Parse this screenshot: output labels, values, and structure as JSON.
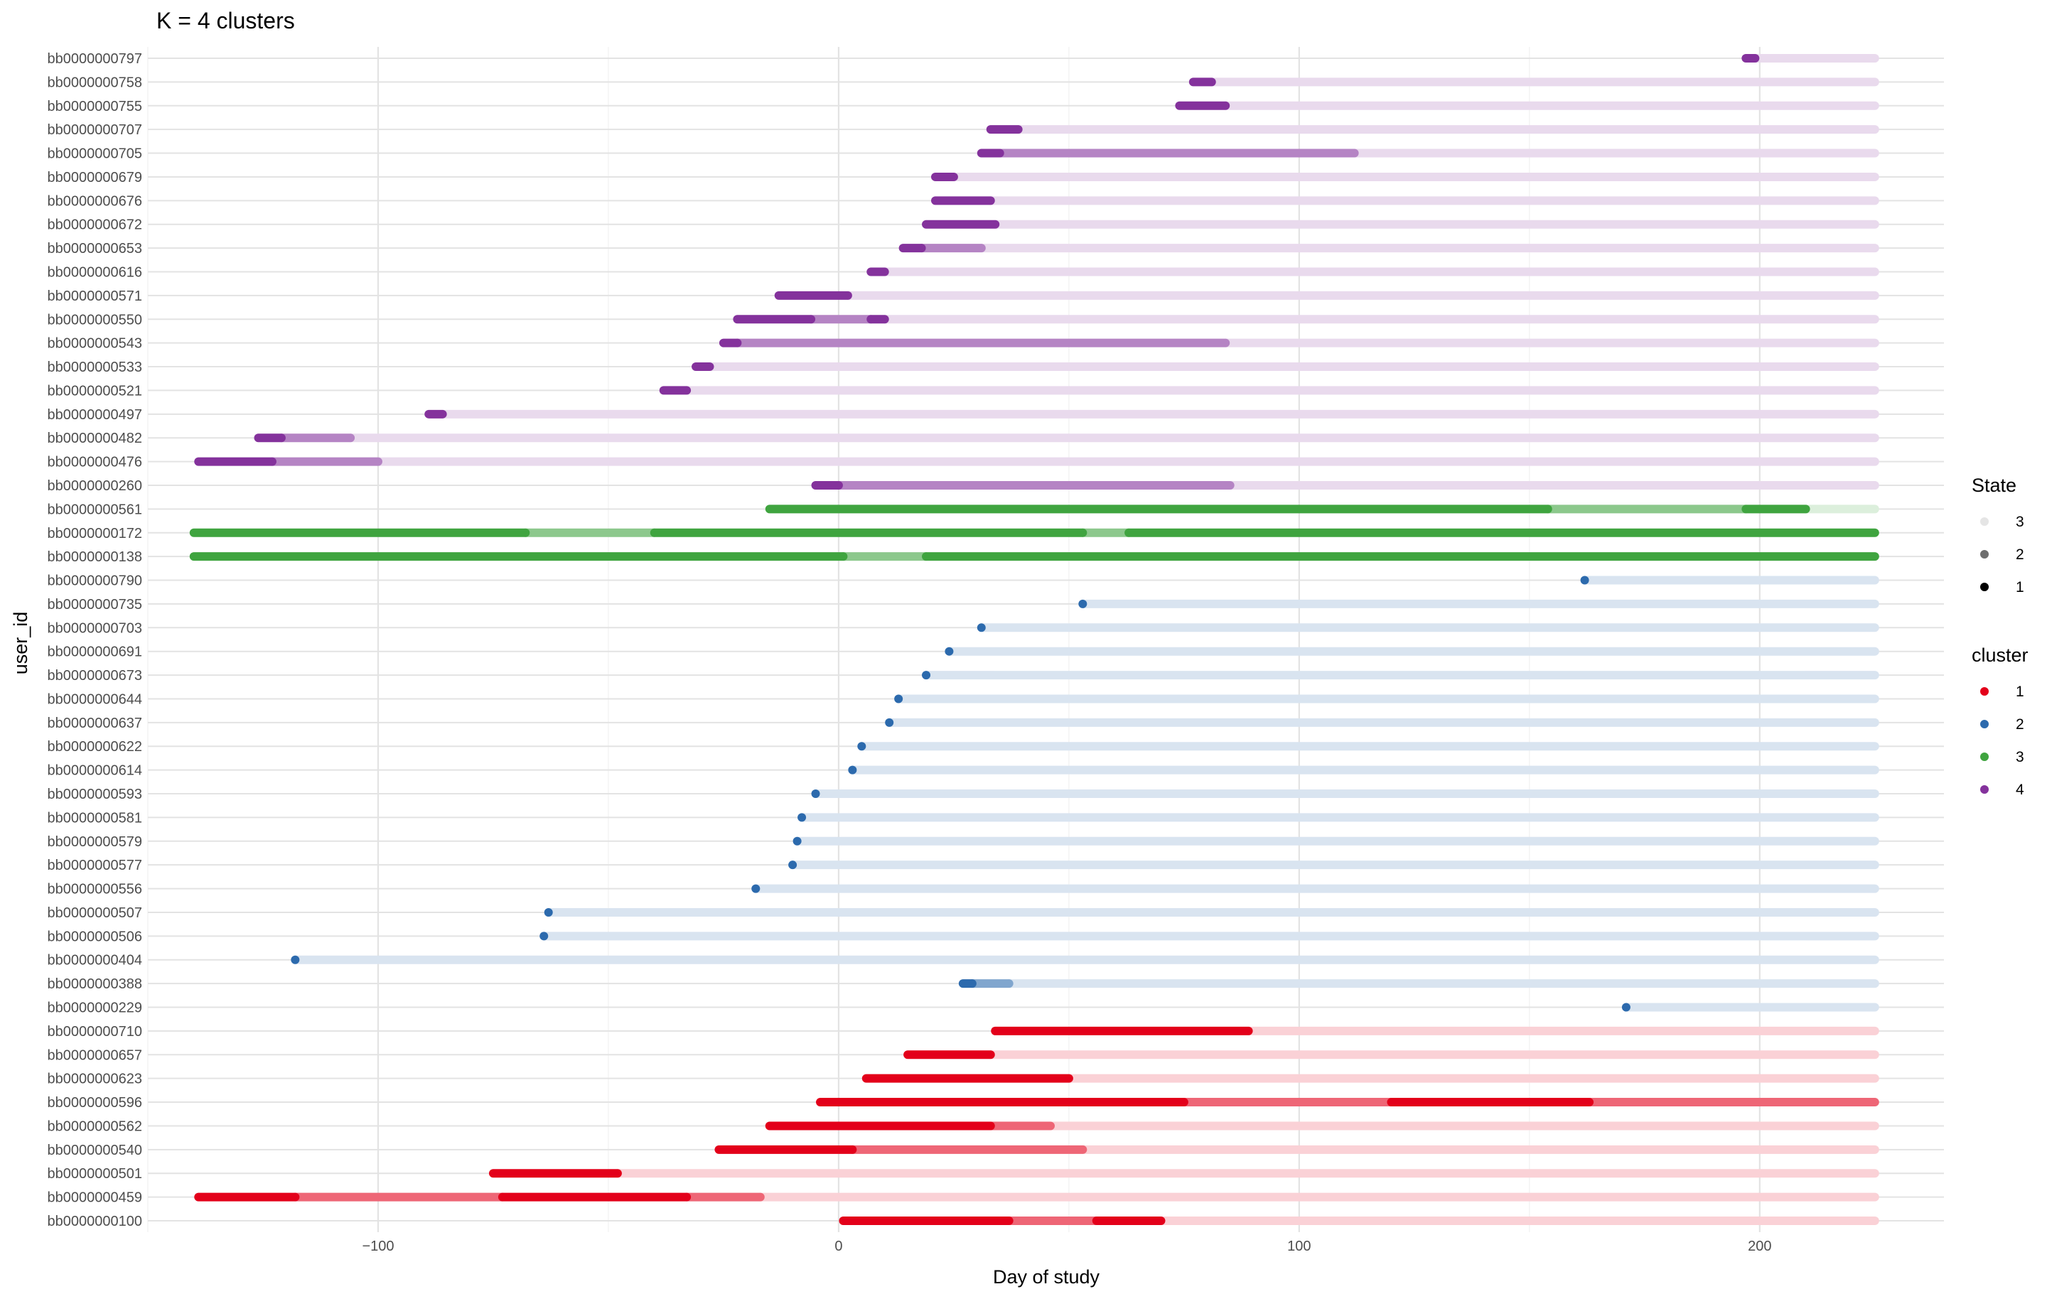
{
  "chart_data": {
    "type": "scatter",
    "title": "K = 4 clusters",
    "xlabel": "Day of study",
    "ylabel": "user_id",
    "xlim": [
      -150,
      240
    ],
    "xticks": [
      -100,
      0,
      100,
      200
    ],
    "grid": true,
    "legend_position": "right",
    "max_day": 225,
    "cluster_colors": {
      "1": "#E3001A",
      "2": "#2C6AAD",
      "3": "#3FA43F",
      "4": "#84329C"
    },
    "state_alpha": {
      "1": 1.0,
      "2": 0.6,
      "3": 0.18
    },
    "series": [
      {
        "user_id": "bb0000000100",
        "cluster": 1,
        "segments": [
          {
            "from": 1,
            "to": 37,
            "state": 1
          },
          {
            "from": 37,
            "to": 56,
            "state": 2
          },
          {
            "from": 56,
            "to": 70,
            "state": 1
          },
          {
            "from": 70,
            "to": 225,
            "state": 3
          }
        ]
      },
      {
        "user_id": "bb0000000459",
        "cluster": 1,
        "segments": [
          {
            "from": -139,
            "to": -118,
            "state": 1
          },
          {
            "from": -118,
            "to": -73,
            "state": 2
          },
          {
            "from": -73,
            "to": -33,
            "state": 1
          },
          {
            "from": -33,
            "to": -17,
            "state": 2
          },
          {
            "from": -17,
            "to": 225,
            "state": 3
          }
        ]
      },
      {
        "user_id": "bb0000000501",
        "cluster": 1,
        "segments": [
          {
            "from": -75,
            "to": -48,
            "state": 1
          },
          {
            "from": -48,
            "to": 225,
            "state": 3
          }
        ]
      },
      {
        "user_id": "bb0000000540",
        "cluster": 1,
        "segments": [
          {
            "from": -26,
            "to": 3,
            "state": 1
          },
          {
            "from": 3,
            "to": 53,
            "state": 2
          },
          {
            "from": 53,
            "to": 225,
            "state": 3
          }
        ]
      },
      {
        "user_id": "bb0000000562",
        "cluster": 1,
        "segments": [
          {
            "from": -15,
            "to": 33,
            "state": 1
          },
          {
            "from": 33,
            "to": 46,
            "state": 2
          },
          {
            "from": 46,
            "to": 225,
            "state": 3
          }
        ]
      },
      {
        "user_id": "bb0000000596",
        "cluster": 1,
        "segments": [
          {
            "from": -4,
            "to": 75,
            "state": 1
          },
          {
            "from": 75,
            "to": 120,
            "state": 2
          },
          {
            "from": 120,
            "to": 163,
            "state": 1
          },
          {
            "from": 163,
            "to": 225,
            "state": 2
          }
        ]
      },
      {
        "user_id": "bb0000000623",
        "cluster": 1,
        "segments": [
          {
            "from": 6,
            "to": 50,
            "state": 1
          },
          {
            "from": 50,
            "to": 225,
            "state": 3
          }
        ]
      },
      {
        "user_id": "bb0000000657",
        "cluster": 1,
        "segments": [
          {
            "from": 15,
            "to": 33,
            "state": 1
          },
          {
            "from": 33,
            "to": 225,
            "state": 3
          }
        ]
      },
      {
        "user_id": "bb0000000710",
        "cluster": 1,
        "segments": [
          {
            "from": 34,
            "to": 89,
            "state": 1
          },
          {
            "from": 89,
            "to": 225,
            "state": 3
          }
        ]
      },
      {
        "user_id": "bb0000000229",
        "cluster": 2,
        "segments": [
          {
            "from": 171,
            "to": 171,
            "state": 1
          },
          {
            "from": 171,
            "to": 225,
            "state": 3
          }
        ]
      },
      {
        "user_id": "bb0000000388",
        "cluster": 2,
        "segments": [
          {
            "from": 27,
            "to": 29,
            "state": 1
          },
          {
            "from": 29,
            "to": 37,
            "state": 2
          },
          {
            "from": 37,
            "to": 225,
            "state": 3
          }
        ]
      },
      {
        "user_id": "bb0000000404",
        "cluster": 2,
        "segments": [
          {
            "from": -118,
            "to": -118,
            "state": 1
          },
          {
            "from": -118,
            "to": 225,
            "state": 3
          }
        ]
      },
      {
        "user_id": "bb0000000506",
        "cluster": 2,
        "segments": [
          {
            "from": -64,
            "to": -64,
            "state": 1
          },
          {
            "from": -64,
            "to": 225,
            "state": 3
          }
        ]
      },
      {
        "user_id": "bb0000000507",
        "cluster": 2,
        "segments": [
          {
            "from": -63,
            "to": -63,
            "state": 1
          },
          {
            "from": -63,
            "to": 225,
            "state": 3
          }
        ]
      },
      {
        "user_id": "bb0000000556",
        "cluster": 2,
        "segments": [
          {
            "from": -18,
            "to": -18,
            "state": 1
          },
          {
            "from": -18,
            "to": 225,
            "state": 3
          }
        ]
      },
      {
        "user_id": "bb0000000577",
        "cluster": 2,
        "segments": [
          {
            "from": -10,
            "to": -10,
            "state": 1
          },
          {
            "from": -10,
            "to": 225,
            "state": 3
          }
        ]
      },
      {
        "user_id": "bb0000000579",
        "cluster": 2,
        "segments": [
          {
            "from": -9,
            "to": -9,
            "state": 1
          },
          {
            "from": -9,
            "to": 225,
            "state": 3
          }
        ]
      },
      {
        "user_id": "bb0000000581",
        "cluster": 2,
        "segments": [
          {
            "from": -8,
            "to": -8,
            "state": 1
          },
          {
            "from": -8,
            "to": 225,
            "state": 3
          }
        ]
      },
      {
        "user_id": "bb0000000593",
        "cluster": 2,
        "segments": [
          {
            "from": -5,
            "to": -5,
            "state": 1
          },
          {
            "from": -5,
            "to": 225,
            "state": 3
          }
        ]
      },
      {
        "user_id": "bb0000000614",
        "cluster": 2,
        "segments": [
          {
            "from": 3,
            "to": 3,
            "state": 1
          },
          {
            "from": 3,
            "to": 225,
            "state": 3
          }
        ]
      },
      {
        "user_id": "bb0000000622",
        "cluster": 2,
        "segments": [
          {
            "from": 5,
            "to": 5,
            "state": 1
          },
          {
            "from": 5,
            "to": 225,
            "state": 3
          }
        ]
      },
      {
        "user_id": "bb0000000637",
        "cluster": 2,
        "segments": [
          {
            "from": 11,
            "to": 11,
            "state": 1
          },
          {
            "from": 11,
            "to": 225,
            "state": 3
          }
        ]
      },
      {
        "user_id": "bb0000000644",
        "cluster": 2,
        "segments": [
          {
            "from": 13,
            "to": 13,
            "state": 1
          },
          {
            "from": 13,
            "to": 225,
            "state": 3
          }
        ]
      },
      {
        "user_id": "bb0000000673",
        "cluster": 2,
        "segments": [
          {
            "from": 19,
            "to": 19,
            "state": 1
          },
          {
            "from": 19,
            "to": 225,
            "state": 3
          }
        ]
      },
      {
        "user_id": "bb0000000691",
        "cluster": 2,
        "segments": [
          {
            "from": 24,
            "to": 24,
            "state": 1
          },
          {
            "from": 24,
            "to": 225,
            "state": 3
          }
        ]
      },
      {
        "user_id": "bb0000000703",
        "cluster": 2,
        "segments": [
          {
            "from": 31,
            "to": 31,
            "state": 1
          },
          {
            "from": 31,
            "to": 225,
            "state": 3
          }
        ]
      },
      {
        "user_id": "bb0000000735",
        "cluster": 2,
        "segments": [
          {
            "from": 53,
            "to": 53,
            "state": 1
          },
          {
            "from": 53,
            "to": 225,
            "state": 3
          }
        ]
      },
      {
        "user_id": "bb0000000790",
        "cluster": 2,
        "segments": [
          {
            "from": 162,
            "to": 162,
            "state": 1
          },
          {
            "from": 162,
            "to": 225,
            "state": 3
          }
        ]
      },
      {
        "user_id": "bb0000000138",
        "cluster": 3,
        "segments": [
          {
            "from": -140,
            "to": 1,
            "state": 1
          },
          {
            "from": 1,
            "to": 19,
            "state": 2
          },
          {
            "from": 19,
            "to": 225,
            "state": 1
          }
        ]
      },
      {
        "user_id": "bb0000000172",
        "cluster": 3,
        "segments": [
          {
            "from": -140,
            "to": -68,
            "state": 1
          },
          {
            "from": -68,
            "to": -40,
            "state": 2
          },
          {
            "from": -40,
            "to": 53,
            "state": 1
          },
          {
            "from": 53,
            "to": 63,
            "state": 2
          },
          {
            "from": 63,
            "to": 225,
            "state": 1
          }
        ]
      },
      {
        "user_id": "bb0000000561",
        "cluster": 3,
        "segments": [
          {
            "from": -15,
            "to": 154,
            "state": 1
          },
          {
            "from": 154,
            "to": 197,
            "state": 2
          },
          {
            "from": 197,
            "to": 210,
            "state": 1
          },
          {
            "from": 210,
            "to": 225,
            "state": 3
          }
        ]
      },
      {
        "user_id": "bb0000000260",
        "cluster": 4,
        "segments": [
          {
            "from": -5,
            "to": 0,
            "state": 1
          },
          {
            "from": 0,
            "to": 85,
            "state": 2
          },
          {
            "from": 85,
            "to": 225,
            "state": 3
          }
        ]
      },
      {
        "user_id": "bb0000000476",
        "cluster": 4,
        "segments": [
          {
            "from": -139,
            "to": -123,
            "state": 1
          },
          {
            "from": -123,
            "to": -100,
            "state": 2
          },
          {
            "from": -100,
            "to": 225,
            "state": 3
          }
        ]
      },
      {
        "user_id": "bb0000000482",
        "cluster": 4,
        "segments": [
          {
            "from": -126,
            "to": -121,
            "state": 1
          },
          {
            "from": -121,
            "to": -106,
            "state": 2
          },
          {
            "from": -106,
            "to": 225,
            "state": 3
          }
        ]
      },
      {
        "user_id": "bb0000000497",
        "cluster": 4,
        "segments": [
          {
            "from": -89,
            "to": -86,
            "state": 1
          },
          {
            "from": -86,
            "to": 225,
            "state": 3
          }
        ]
      },
      {
        "user_id": "bb0000000521",
        "cluster": 4,
        "segments": [
          {
            "from": -38,
            "to": -33,
            "state": 1
          },
          {
            "from": -33,
            "to": 225,
            "state": 3
          }
        ]
      },
      {
        "user_id": "bb0000000533",
        "cluster": 4,
        "segments": [
          {
            "from": -31,
            "to": -28,
            "state": 1
          },
          {
            "from": -28,
            "to": 225,
            "state": 3
          }
        ]
      },
      {
        "user_id": "bb0000000543",
        "cluster": 4,
        "segments": [
          {
            "from": -25,
            "to": -22,
            "state": 1
          },
          {
            "from": -22,
            "to": 84,
            "state": 2
          },
          {
            "from": 84,
            "to": 225,
            "state": 3
          }
        ]
      },
      {
        "user_id": "bb0000000550",
        "cluster": 4,
        "segments": [
          {
            "from": -22,
            "to": -6,
            "state": 1
          },
          {
            "from": -6,
            "to": 7,
            "state": 2
          },
          {
            "from": 7,
            "to": 10,
            "state": 1
          },
          {
            "from": 10,
            "to": 225,
            "state": 3
          }
        ]
      },
      {
        "user_id": "bb0000000571",
        "cluster": 4,
        "segments": [
          {
            "from": -13,
            "to": 2,
            "state": 1
          },
          {
            "from": 2,
            "to": 225,
            "state": 3
          }
        ]
      },
      {
        "user_id": "bb0000000616",
        "cluster": 4,
        "segments": [
          {
            "from": 7,
            "to": 10,
            "state": 1
          },
          {
            "from": 10,
            "to": 225,
            "state": 3
          }
        ]
      },
      {
        "user_id": "bb0000000653",
        "cluster": 4,
        "segments": [
          {
            "from": 14,
            "to": 18,
            "state": 1
          },
          {
            "from": 18,
            "to": 31,
            "state": 2
          },
          {
            "from": 31,
            "to": 225,
            "state": 3
          }
        ]
      },
      {
        "user_id": "bb0000000672",
        "cluster": 4,
        "segments": [
          {
            "from": 19,
            "to": 34,
            "state": 1
          },
          {
            "from": 34,
            "to": 225,
            "state": 3
          }
        ]
      },
      {
        "user_id": "bb0000000676",
        "cluster": 4,
        "segments": [
          {
            "from": 21,
            "to": 33,
            "state": 1
          },
          {
            "from": 33,
            "to": 225,
            "state": 3
          }
        ]
      },
      {
        "user_id": "bb0000000679",
        "cluster": 4,
        "segments": [
          {
            "from": 21,
            "to": 25,
            "state": 1
          },
          {
            "from": 25,
            "to": 225,
            "state": 3
          }
        ]
      },
      {
        "user_id": "bb0000000705",
        "cluster": 4,
        "segments": [
          {
            "from": 31,
            "to": 35,
            "state": 1
          },
          {
            "from": 35,
            "to": 112,
            "state": 2
          },
          {
            "from": 112,
            "to": 225,
            "state": 3
          }
        ]
      },
      {
        "user_id": "bb0000000707",
        "cluster": 4,
        "segments": [
          {
            "from": 33,
            "to": 39,
            "state": 1
          },
          {
            "from": 39,
            "to": 225,
            "state": 3
          }
        ]
      },
      {
        "user_id": "bb0000000755",
        "cluster": 4,
        "segments": [
          {
            "from": 74,
            "to": 84,
            "state": 1
          },
          {
            "from": 84,
            "to": 225,
            "state": 3
          }
        ]
      },
      {
        "user_id": "bb0000000758",
        "cluster": 4,
        "segments": [
          {
            "from": 77,
            "to": 81,
            "state": 1
          },
          {
            "from": 81,
            "to": 225,
            "state": 3
          }
        ]
      },
      {
        "user_id": "bb0000000797",
        "cluster": 4,
        "segments": [
          {
            "from": 197,
            "to": 199,
            "state": 1
          },
          {
            "from": 199,
            "to": 225,
            "state": 3
          }
        ]
      }
    ]
  },
  "legend": {
    "state": {
      "title": "State",
      "items": [
        "3",
        "2",
        "1"
      ]
    },
    "cluster": {
      "title": "cluster",
      "items": [
        "1",
        "2",
        "3",
        "4"
      ]
    }
  }
}
